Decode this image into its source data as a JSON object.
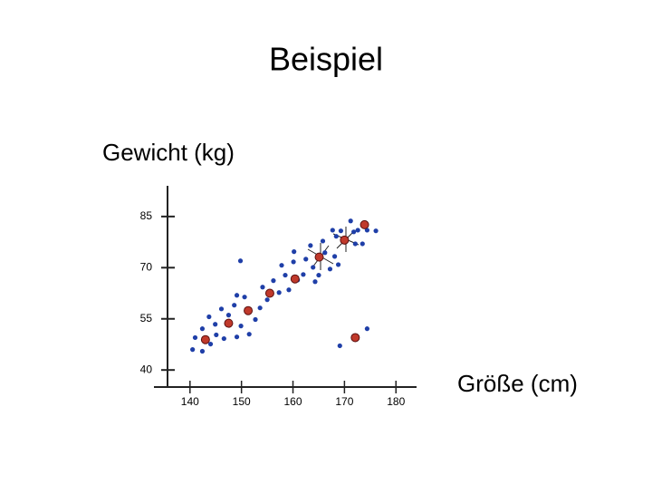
{
  "title": "Beispiel",
  "chart_data": {
    "type": "scatter",
    "y_label": "Gewicht (kg)",
    "x_label": "Größe (cm)",
    "xlim": [
      133,
      184
    ],
    "ylim": [
      35,
      94
    ],
    "xticks": [
      140,
      150,
      160,
      170,
      180
    ],
    "yticks": [
      40,
      55,
      70,
      85
    ],
    "series": [
      {
        "color": "#1f3fa8",
        "x": [
          140.5,
          142.4,
          144.0,
          141.0,
          142.4,
          145.1,
          146.6,
          144.9,
          143.7,
          146.1,
          147.5,
          148.6,
          149.1,
          149.9,
          150.6,
          149.1,
          151.5,
          152.7,
          153.6,
          154.1,
          155.0,
          156.2,
          157.3,
          157.8,
          158.5,
          159.2,
          160.1,
          160.2,
          160.9,
          162.0,
          162.5,
          163.4,
          163.9,
          164.3,
          165.0,
          165.8,
          166.2,
          167.2,
          168.1,
          168.8,
          167.7,
          168.4,
          169.3,
          171.2,
          171.8,
          172.1,
          172.6,
          173.5,
          174.4,
          176.1,
          149.8,
          169.1,
          174.4
        ],
        "values": [
          46.0,
          45.5,
          47.6,
          49.5,
          52.1,
          50.3,
          49.2,
          53.4,
          55.6,
          57.9,
          56.1,
          59.0,
          49.7,
          52.9,
          61.4,
          61.9,
          50.5,
          54.8,
          58.2,
          64.3,
          60.6,
          66.2,
          62.7,
          70.7,
          67.8,
          63.5,
          71.7,
          74.7,
          66.4,
          68.0,
          72.5,
          76.5,
          70.1,
          65.9,
          67.8,
          77.8,
          74.4,
          69.6,
          73.3,
          70.9,
          81.0,
          79.2,
          80.8,
          83.7,
          80.5,
          77.0,
          81.0,
          77.0,
          81.0,
          80.8,
          72.0,
          47.1,
          52.1
        ]
      },
      {
        "color": "#c0392b",
        "x": [
          143.0,
          147.5,
          151.3,
          155.5,
          160.4,
          165.1,
          170.0,
          173.9,
          172.1
        ],
        "values": [
          48.9,
          53.7,
          57.4,
          62.5,
          66.7,
          73.1,
          78.1,
          82.6,
          49.5
        ]
      }
    ]
  }
}
